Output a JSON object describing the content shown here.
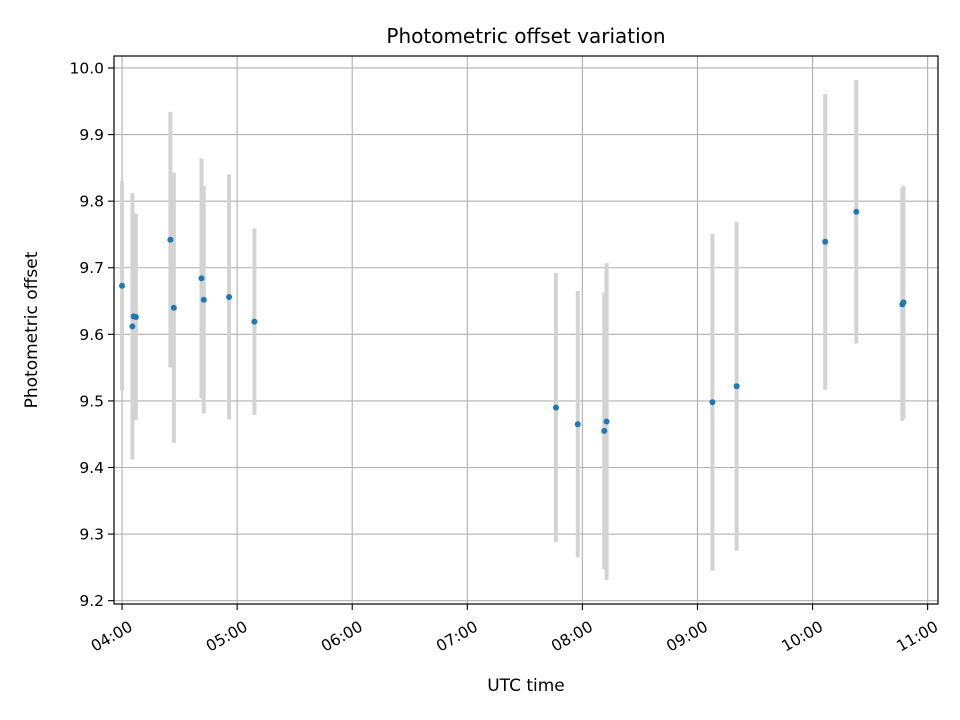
{
  "chart_data": {
    "type": "scatter",
    "title": "Photometric offset variation",
    "xlabel": "UTC time",
    "ylabel": "Photometric offset",
    "x_unit": "hours",
    "xlim": [
      3.93,
      11.09
    ],
    "ylim": [
      9.195,
      10.018
    ],
    "x_ticks": [
      {
        "value": 4,
        "label": "04:00"
      },
      {
        "value": 5,
        "label": "05:00"
      },
      {
        "value": 6,
        "label": "06:00"
      },
      {
        "value": 7,
        "label": "07:00"
      },
      {
        "value": 8,
        "label": "08:00"
      },
      {
        "value": 9,
        "label": "09:00"
      },
      {
        "value": 10,
        "label": "10:00"
      },
      {
        "value": 11,
        "label": "11:00"
      }
    ],
    "y_ticks": [
      {
        "value": 9.2,
        "label": "9.2"
      },
      {
        "value": 9.3,
        "label": "9.3"
      },
      {
        "value": 9.4,
        "label": "9.4"
      },
      {
        "value": 9.5,
        "label": "9.5"
      },
      {
        "value": 9.6,
        "label": "9.6"
      },
      {
        "value": 9.7,
        "label": "9.7"
      },
      {
        "value": 9.8,
        "label": "9.8"
      },
      {
        "value": 9.9,
        "label": "9.9"
      },
      {
        "value": 10.0,
        "label": "10.0"
      }
    ],
    "grid": true,
    "marker_color": "#1f77b4",
    "errorbar_color": "#d3d3d3",
    "points": [
      {
        "x": 4.0,
        "y": 9.673,
        "err": 0.157
      },
      {
        "x": 4.09,
        "y": 9.612,
        "err": 0.2
      },
      {
        "x": 4.1,
        "y": 9.627,
        "err": 0.155
      },
      {
        "x": 4.12,
        "y": 9.626,
        "err": 0.155
      },
      {
        "x": 4.42,
        "y": 9.742,
        "err": 0.192
      },
      {
        "x": 4.45,
        "y": 9.64,
        "err": 0.203
      },
      {
        "x": 4.69,
        "y": 9.684,
        "err": 0.18
      },
      {
        "x": 4.71,
        "y": 9.652,
        "err": 0.171
      },
      {
        "x": 4.93,
        "y": 9.656,
        "err": 0.184
      },
      {
        "x": 5.15,
        "y": 9.619,
        "err": 0.14
      },
      {
        "x": 7.77,
        "y": 9.49,
        "err": 0.202
      },
      {
        "x": 7.96,
        "y": 9.465,
        "err": 0.2
      },
      {
        "x": 8.19,
        "y": 9.455,
        "err": 0.208
      },
      {
        "x": 8.21,
        "y": 9.469,
        "err": 0.238
      },
      {
        "x": 9.13,
        "y": 9.498,
        "err": 0.253
      },
      {
        "x": 9.34,
        "y": 9.522,
        "err": 0.247
      },
      {
        "x": 10.11,
        "y": 9.739,
        "err": 0.222
      },
      {
        "x": 10.38,
        "y": 9.784,
        "err": 0.198
      },
      {
        "x": 10.78,
        "y": 9.645,
        "err": 0.175
      },
      {
        "x": 10.79,
        "y": 9.648,
        "err": 0.175
      }
    ]
  }
}
